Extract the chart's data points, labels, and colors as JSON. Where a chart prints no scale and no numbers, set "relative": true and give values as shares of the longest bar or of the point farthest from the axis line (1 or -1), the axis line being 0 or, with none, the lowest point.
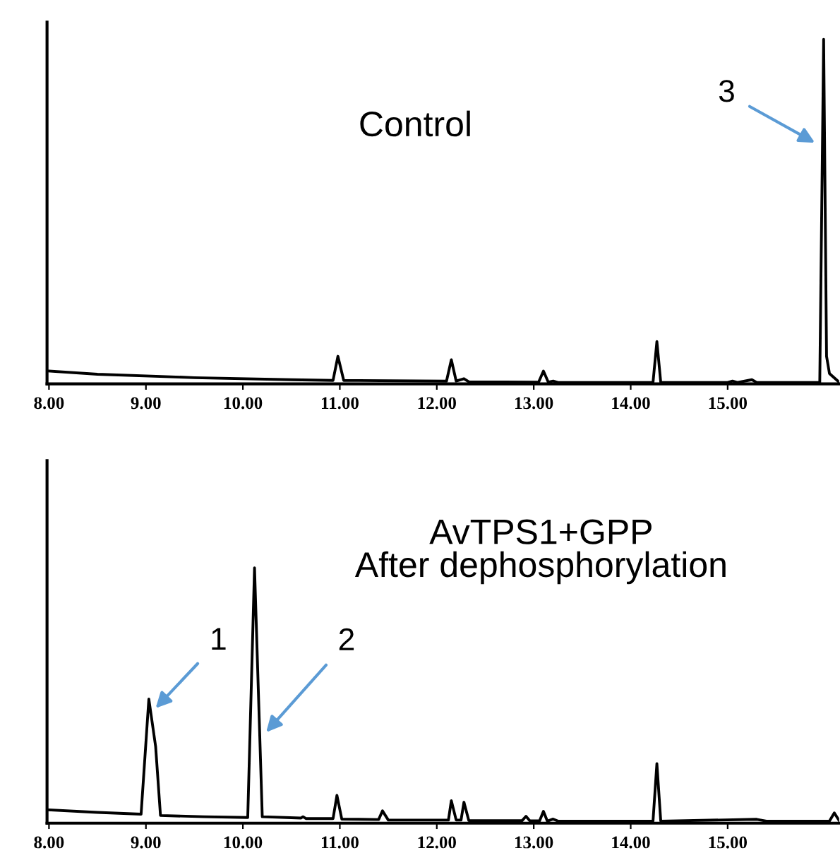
{
  "chart_data": [
    {
      "type": "line",
      "relative": true,
      "color": "#000000",
      "marker": "none",
      "line_style": "solid",
      "grid": false,
      "legend": false,
      "x": [
        8.0,
        8.5,
        9.5,
        10.5,
        10.93,
        10.98,
        11.04,
        12.1,
        12.15,
        12.2,
        12.28,
        12.33,
        13.05,
        13.1,
        13.15,
        13.2,
        13.25,
        14.23,
        14.27,
        14.31,
        15.0,
        15.05,
        15.1,
        15.25,
        15.3,
        15.95,
        15.99,
        16.02,
        16.05,
        16.15
      ],
      "values": [
        0.037,
        0.028,
        0.018,
        0.012,
        0.01,
        0.08,
        0.01,
        0.008,
        0.07,
        0.008,
        0.015,
        0.006,
        0.005,
        0.037,
        0.005,
        0.008,
        0.004,
        0.004,
        0.123,
        0.004,
        0.004,
        0.008,
        0.004,
        0.012,
        0.004,
        0.004,
        1.0,
        0.08,
        0.03,
        0.005
      ],
      "xlim": [
        7.98,
        16.15
      ],
      "xticks": [
        {
          "value": 8,
          "label": "8.00"
        },
        {
          "value": 9,
          "label": "9.00"
        },
        {
          "value": 10,
          "label": "10.00"
        },
        {
          "value": 11,
          "label": "11.00"
        },
        {
          "value": 12,
          "label": "12.00"
        },
        {
          "value": 13,
          "label": "13.00"
        },
        {
          "value": 14,
          "label": "14.00"
        },
        {
          "value": 15,
          "label": "15.00"
        }
      ],
      "tick_labels": "x",
      "annotations": [
        "Control",
        {
          "text": "3",
          "x": 15.9,
          "y": 0.7
        }
      ]
    },
    {
      "type": "line",
      "relative": true,
      "color": "#000000",
      "marker": "none",
      "line_style": "solid",
      "grid": false,
      "legend": false,
      "x": [
        8.0,
        8.5,
        8.95,
        9.03,
        9.1,
        9.15,
        9.6,
        10.05,
        10.12,
        10.2,
        10.6,
        10.62,
        10.65,
        10.93,
        10.97,
        11.02,
        11.4,
        11.44,
        11.5,
        12.12,
        12.15,
        12.2,
        12.25,
        12.28,
        12.33,
        12.88,
        12.92,
        12.96,
        13.06,
        13.1,
        13.14,
        13.2,
        13.25,
        14.23,
        14.27,
        14.31,
        15.3,
        15.4,
        16.05,
        16.1,
        16.15
      ],
      "values": [
        0.052,
        0.042,
        0.035,
        0.486,
        0.3,
        0.03,
        0.025,
        0.022,
        1.0,
        0.025,
        0.02,
        0.025,
        0.018,
        0.018,
        0.109,
        0.016,
        0.014,
        0.048,
        0.012,
        0.012,
        0.088,
        0.012,
        0.012,
        0.082,
        0.01,
        0.01,
        0.027,
        0.009,
        0.009,
        0.046,
        0.008,
        0.016,
        0.008,
        0.008,
        0.233,
        0.008,
        0.015,
        0.008,
        0.008,
        0.04,
        0.01
      ],
      "xlim": [
        7.98,
        16.15
      ],
      "xticks": [
        {
          "value": 8,
          "label": "8.00"
        },
        {
          "value": 9,
          "label": "9.00"
        },
        {
          "value": 10,
          "label": "10.00"
        },
        {
          "value": 11,
          "label": "11.00"
        },
        {
          "value": 12,
          "label": "12.00"
        },
        {
          "value": 13,
          "label": "13.00"
        },
        {
          "value": 14,
          "label": "14.00"
        },
        {
          "value": 15,
          "label": "15.00"
        }
      ],
      "tick_labels": "x",
      "annotations": [
        "AvTPS1+GPP\nAfter dephosphorylation",
        {
          "text": "1",
          "x": 9.1,
          "y": 0.45
        },
        {
          "text": "2",
          "x": 10.24,
          "y": 0.356
        }
      ]
    }
  ]
}
